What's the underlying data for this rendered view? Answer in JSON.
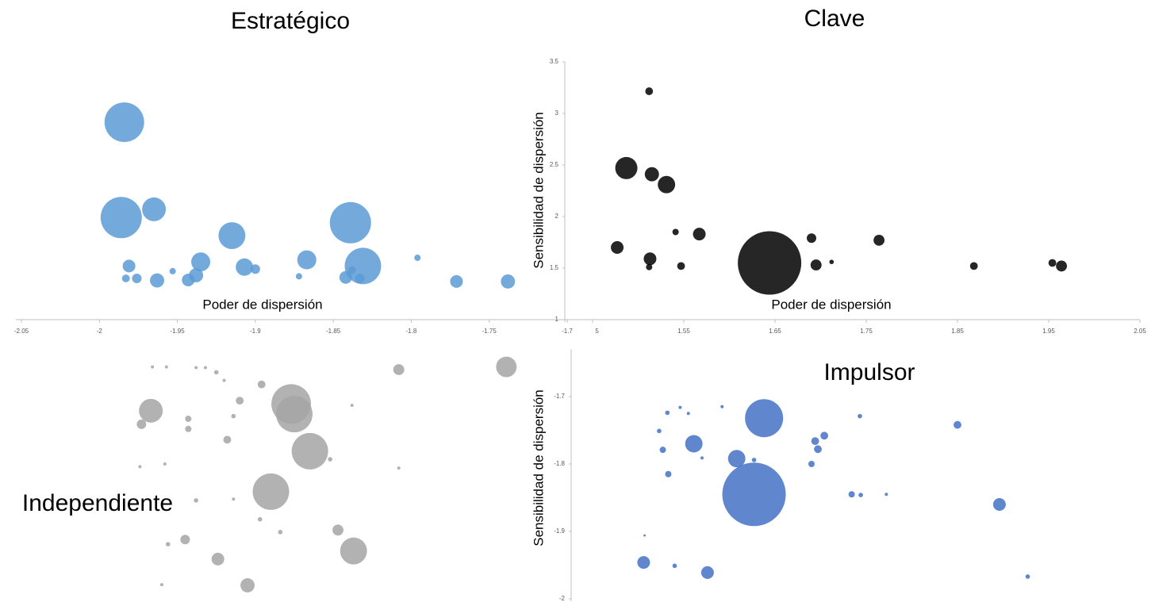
{
  "chart_data": [
    {
      "type": "bubble",
      "title": "Estratégico",
      "x_label": "Poder de dispersión",
      "color": "#5b9bd5",
      "xlim": [
        -2.05,
        -1.7
      ],
      "ylim": [
        1,
        3.5
      ],
      "xticks": [
        -2.05,
        -2,
        -1.95,
        -1.9,
        -1.85,
        -1.8,
        -1.75,
        -1.7
      ],
      "x": [
        -1.984,
        -1.986,
        -1.965,
        -1.915,
        -1.839,
        -1.831,
        -1.867,
        -1.935,
        -1.907,
        -1.9,
        -1.981,
        -1.983,
        -1.976,
        -1.963,
        -1.953,
        -1.943,
        -1.938,
        -1.872,
        -1.842,
        -1.838,
        -1.833,
        -1.796,
        -1.771,
        -1.738
      ],
      "y": [
        2.915,
        1.99,
        2.07,
        1.815,
        1.94,
        1.52,
        1.58,
        1.56,
        1.51,
        1.49,
        1.52,
        1.4,
        1.4,
        1.38,
        1.47,
        1.385,
        1.43,
        1.42,
        1.41,
        1.48,
        1.4,
        1.6,
        1.37,
        1.37
      ],
      "sizes": [
        156,
        169,
        56,
        72,
        169,
        132,
        36,
        36,
        30,
        9,
        16,
        6,
        9,
        20,
        4,
        16,
        20,
        4,
        16,
        6,
        9,
        4,
        16,
        20
      ]
    },
    {
      "type": "bubble",
      "title": "Clave",
      "x_label": "Poder de dispersión",
      "y_label": "Sensibilidad de dispersión",
      "color": "#000000",
      "xlim": [
        1.42,
        2.05
      ],
      "ylim": [
        1,
        3.5
      ],
      "xticks": [
        1.45,
        1.55,
        1.65,
        1.75,
        1.85,
        1.95,
        2.05
      ],
      "yticks": [
        1,
        1.5,
        2,
        2.5,
        3,
        3.5
      ],
      "x": [
        1.512,
        1.487,
        1.515,
        1.531,
        1.541,
        1.567,
        1.477,
        1.513,
        1.512,
        1.547,
        1.644,
        1.69,
        1.695,
        1.712,
        1.764,
        1.868,
        1.954,
        1.964
      ],
      "y": [
        3.215,
        2.47,
        2.41,
        2.31,
        1.85,
        1.83,
        1.7,
        1.59,
        1.51,
        1.52,
        1.55,
        1.79,
        1.53,
        1.56,
        1.77,
        1.52,
        1.55,
        1.52
      ],
      "sizes": [
        6,
        49,
        20,
        30,
        4,
        16,
        16,
        16,
        4,
        6,
        400,
        9,
        12,
        2,
        12,
        6,
        6,
        12
      ]
    },
    {
      "type": "bubble",
      "title": "Independiente",
      "color": "#a5a5a5",
      "xlim": [
        -2.05,
        -1.7
      ],
      "ylim": [
        -2,
        -1.6
      ],
      "x": [
        -1.739,
        -1.808,
        -1.967,
        -1.877,
        -1.875,
        -1.865,
        -1.89,
        -1.837,
        -1.847,
        -1.924,
        -1.905,
        -1.945,
        -1.973,
        -1.918,
        -1.896,
        -1.91,
        -1.943,
        -1.943,
        -1.914,
        -1.966,
        -1.957,
        -1.938,
        -1.932,
        -1.925,
        -1.92,
        -1.838,
        -1.852,
        -1.808,
        -1.938,
        -1.914,
        -1.897,
        -1.884,
        -1.956,
        -1.96,
        -1.974,
        -1.958
      ],
      "y": [
        -1.656,
        -1.66,
        -1.721,
        -1.711,
        -1.726,
        -1.781,
        -1.841,
        -1.929,
        -1.898,
        -1.941,
        -1.98,
        -1.912,
        -1.741,
        -1.764,
        -1.682,
        -1.706,
        -1.733,
        -1.748,
        -1.729,
        -1.656,
        -1.656,
        -1.657,
        -1.657,
        -1.664,
        -1.676,
        -1.713,
        -1.793,
        -1.806,
        -1.854,
        -1.852,
        -1.882,
        -1.901,
        -1.919,
        -1.979,
        -1.804,
        -1.8
      ],
      "sizes": [
        42,
        12,
        56,
        156,
        132,
        132,
        132,
        72,
        12,
        16,
        20,
        9,
        9,
        6,
        6,
        6,
        4,
        4,
        2,
        1,
        1,
        1,
        1,
        2,
        1,
        1,
        2,
        1,
        2,
        1,
        2,
        2,
        2,
        1,
        1,
        1
      ]
    },
    {
      "type": "bubble",
      "title": "Impulsor",
      "y_label": "Sensibilidad de dispersión",
      "color": "#4472c4",
      "xlim": [
        1.42,
        2.05
      ],
      "ylim": [
        -2,
        -1.63
      ],
      "yticks": [
        -2,
        -1.9,
        -1.8,
        -1.7
      ],
      "x": [
        1.638,
        1.627,
        1.561,
        1.608,
        1.896,
        1.506,
        1.576,
        1.85,
        1.704,
        1.694,
        1.697,
        1.69,
        1.527,
        1.533,
        1.734,
        1.744,
        1.743,
        1.927,
        1.532,
        1.54,
        1.523,
        1.57,
        1.555,
        1.772,
        1.546,
        1.592,
        1.627,
        1.507
      ],
      "y": [
        -1.732,
        -1.845,
        -1.77,
        -1.792,
        -1.86,
        -1.946,
        -1.961,
        -1.742,
        -1.758,
        -1.766,
        -1.778,
        -1.8,
        -1.779,
        -1.815,
        -1.845,
        -1.846,
        -1.729,
        -1.967,
        -1.724,
        -1.951,
        -1.751,
        -1.791,
        -1.725,
        -1.845,
        -1.716,
        -1.715,
        -1.794,
        -1.906
      ],
      "sizes": [
        144,
        400,
        30,
        30,
        16,
        16,
        16,
        6,
        6,
        6,
        6,
        4,
        4,
        4,
        4,
        2,
        2,
        2,
        2,
        2,
        2,
        1,
        1,
        1,
        1,
        1,
        2,
        0.5
      ]
    }
  ]
}
